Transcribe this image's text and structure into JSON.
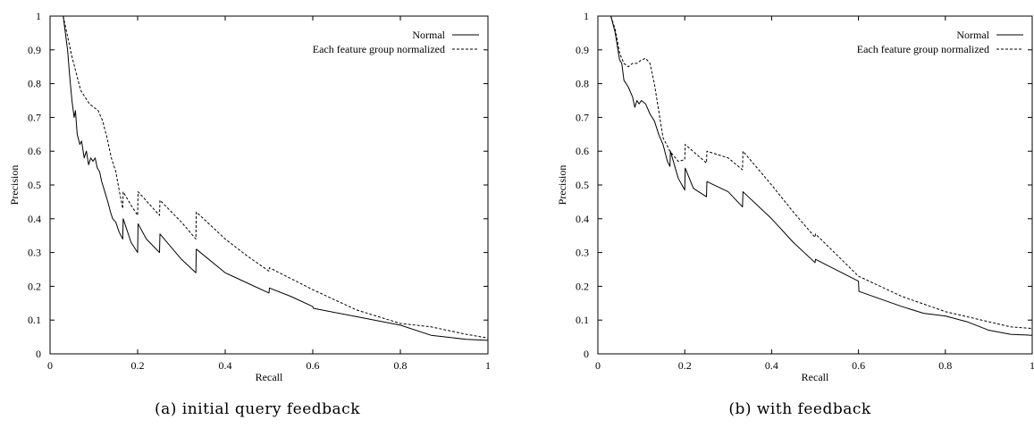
{
  "chart_data": [
    {
      "type": "line",
      "xlabel": "Recall",
      "ylabel": "Precision",
      "xlim": [
        0,
        1
      ],
      "ylim": [
        0,
        1
      ],
      "xticks": [
        "0",
        "0.2",
        "0.4",
        "0.6",
        "0.8",
        "1"
      ],
      "yticks": [
        "0",
        "0.1",
        "0.2",
        "0.3",
        "0.4",
        "0.5",
        "0.6",
        "0.7",
        "0.8",
        "0.9",
        "1"
      ],
      "grid": false,
      "legend_position": "top-right",
      "caption": "(a) initial query feedback",
      "series": [
        {
          "name": "Normal",
          "style": "solid",
          "points": [
            [
              0.03,
              1.0
            ],
            [
              0.04,
              0.9
            ],
            [
              0.045,
              0.82
            ],
            [
              0.05,
              0.75
            ],
            [
              0.055,
              0.7
            ],
            [
              0.058,
              0.72
            ],
            [
              0.062,
              0.65
            ],
            [
              0.068,
              0.62
            ],
            [
              0.072,
              0.63
            ],
            [
              0.078,
              0.58
            ],
            [
              0.083,
              0.6
            ],
            [
              0.088,
              0.56
            ],
            [
              0.093,
              0.58
            ],
            [
              0.098,
              0.57
            ],
            [
              0.103,
              0.58
            ],
            [
              0.108,
              0.55
            ],
            [
              0.113,
              0.54
            ],
            [
              0.118,
              0.51
            ],
            [
              0.125,
              0.48
            ],
            [
              0.132,
              0.45
            ],
            [
              0.138,
              0.42
            ],
            [
              0.143,
              0.4
            ],
            [
              0.15,
              0.39
            ],
            [
              0.158,
              0.36
            ],
            [
              0.166,
              0.34
            ],
            [
              0.167,
              0.4
            ],
            [
              0.185,
              0.33
            ],
            [
              0.2,
              0.3
            ],
            [
              0.201,
              0.385
            ],
            [
              0.22,
              0.34
            ],
            [
              0.25,
              0.3
            ],
            [
              0.251,
              0.355
            ],
            [
              0.3,
              0.28
            ],
            [
              0.333,
              0.24
            ],
            [
              0.334,
              0.31
            ],
            [
              0.4,
              0.24
            ],
            [
              0.45,
              0.21
            ],
            [
              0.5,
              0.18
            ],
            [
              0.501,
              0.195
            ],
            [
              0.55,
              0.17
            ],
            [
              0.6,
              0.14
            ],
            [
              0.601,
              0.135
            ],
            [
              0.7,
              0.11
            ],
            [
              0.8,
              0.085
            ],
            [
              0.87,
              0.055
            ],
            [
              0.95,
              0.043
            ],
            [
              1.0,
              0.04
            ]
          ]
        },
        {
          "name": "Each feature group normalized",
          "style": "dashed",
          "points": [
            [
              0.03,
              1.0
            ],
            [
              0.04,
              0.94
            ],
            [
              0.05,
              0.88
            ],
            [
              0.06,
              0.83
            ],
            [
              0.07,
              0.78
            ],
            [
              0.08,
              0.76
            ],
            [
              0.09,
              0.74
            ],
            [
              0.1,
              0.73
            ],
            [
              0.11,
              0.72
            ],
            [
              0.12,
              0.69
            ],
            [
              0.13,
              0.64
            ],
            [
              0.14,
              0.58
            ],
            [
              0.15,
              0.54
            ],
            [
              0.16,
              0.47
            ],
            [
              0.166,
              0.43
            ],
            [
              0.167,
              0.48
            ],
            [
              0.185,
              0.44
            ],
            [
              0.2,
              0.41
            ],
            [
              0.201,
              0.48
            ],
            [
              0.25,
              0.41
            ],
            [
              0.251,
              0.455
            ],
            [
              0.3,
              0.39
            ],
            [
              0.333,
              0.34
            ],
            [
              0.334,
              0.42
            ],
            [
              0.4,
              0.34
            ],
            [
              0.45,
              0.29
            ],
            [
              0.5,
              0.245
            ],
            [
              0.501,
              0.255
            ],
            [
              0.6,
              0.19
            ],
            [
              0.7,
              0.13
            ],
            [
              0.8,
              0.09
            ],
            [
              0.87,
              0.08
            ],
            [
              0.95,
              0.058
            ],
            [
              1.0,
              0.047
            ]
          ]
        }
      ]
    },
    {
      "type": "line",
      "xlabel": "Recall",
      "ylabel": "Precision",
      "xlim": [
        0,
        1
      ],
      "ylim": [
        0,
        1
      ],
      "xticks": [
        "0",
        "0.2",
        "0.4",
        "0.6",
        "0.8",
        "1"
      ],
      "yticks": [
        "0",
        "0.1",
        "0.2",
        "0.3",
        "0.4",
        "0.5",
        "0.6",
        "0.7",
        "0.8",
        "0.9",
        "1"
      ],
      "grid": false,
      "legend_position": "top-right",
      "caption": "(b) with feedback",
      "series": [
        {
          "name": "Normal",
          "style": "solid",
          "points": [
            [
              0.03,
              1.0
            ],
            [
              0.04,
              0.95
            ],
            [
              0.05,
              0.87
            ],
            [
              0.055,
              0.86
            ],
            [
              0.06,
              0.81
            ],
            [
              0.07,
              0.79
            ],
            [
              0.08,
              0.76
            ],
            [
              0.085,
              0.73
            ],
            [
              0.09,
              0.75
            ],
            [
              0.095,
              0.74
            ],
            [
              0.1,
              0.75
            ],
            [
              0.11,
              0.74
            ],
            [
              0.12,
              0.71
            ],
            [
              0.13,
              0.69
            ],
            [
              0.14,
              0.65
            ],
            [
              0.15,
              0.62
            ],
            [
              0.16,
              0.57
            ],
            [
              0.166,
              0.555
            ],
            [
              0.167,
              0.6
            ],
            [
              0.185,
              0.52
            ],
            [
              0.2,
              0.485
            ],
            [
              0.201,
              0.55
            ],
            [
              0.22,
              0.49
            ],
            [
              0.25,
              0.465
            ],
            [
              0.251,
              0.51
            ],
            [
              0.3,
              0.48
            ],
            [
              0.333,
              0.435
            ],
            [
              0.334,
              0.48
            ],
            [
              0.4,
              0.4
            ],
            [
              0.45,
              0.33
            ],
            [
              0.5,
              0.27
            ],
            [
              0.501,
              0.28
            ],
            [
              0.6,
              0.215
            ],
            [
              0.601,
              0.185
            ],
            [
              0.7,
              0.14
            ],
            [
              0.75,
              0.12
            ],
            [
              0.8,
              0.112
            ],
            [
              0.85,
              0.095
            ],
            [
              0.9,
              0.07
            ],
            [
              0.95,
              0.058
            ],
            [
              1.0,
              0.055
            ]
          ]
        },
        {
          "name": "Each feature group normalized",
          "style": "dashed",
          "points": [
            [
              0.03,
              1.0
            ],
            [
              0.04,
              0.96
            ],
            [
              0.05,
              0.89
            ],
            [
              0.06,
              0.86
            ],
            [
              0.07,
              0.85
            ],
            [
              0.08,
              0.86
            ],
            [
              0.09,
              0.86
            ],
            [
              0.1,
              0.87
            ],
            [
              0.11,
              0.875
            ],
            [
              0.12,
              0.86
            ],
            [
              0.13,
              0.8
            ],
            [
              0.14,
              0.72
            ],
            [
              0.15,
              0.64
            ],
            [
              0.166,
              0.6
            ],
            [
              0.185,
              0.57
            ],
            [
              0.2,
              0.575
            ],
            [
              0.201,
              0.62
            ],
            [
              0.25,
              0.565
            ],
            [
              0.251,
              0.6
            ],
            [
              0.3,
              0.58
            ],
            [
              0.333,
              0.545
            ],
            [
              0.334,
              0.6
            ],
            [
              0.4,
              0.5
            ],
            [
              0.45,
              0.42
            ],
            [
              0.5,
              0.345
            ],
            [
              0.501,
              0.355
            ],
            [
              0.6,
              0.23
            ],
            [
              0.7,
              0.17
            ],
            [
              0.8,
              0.125
            ],
            [
              0.9,
              0.095
            ],
            [
              0.95,
              0.08
            ],
            [
              1.0,
              0.075
            ]
          ]
        }
      ]
    }
  ]
}
